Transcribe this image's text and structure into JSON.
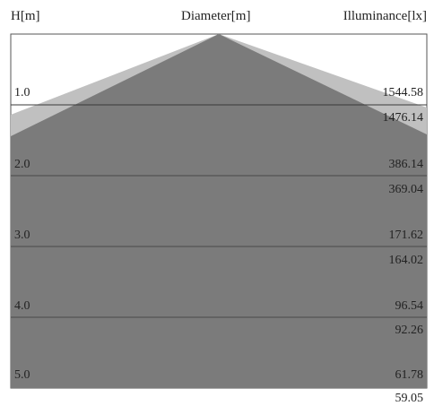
{
  "header": {
    "height_label": "H[m]",
    "diameter_label": "Diameter[m]",
    "illuminance_label": "Illuminance[lx]"
  },
  "rows": [
    {
      "h": "1.0",
      "lux_a": "1544.58",
      "lux_b": "1476.14"
    },
    {
      "h": "2.0",
      "lux_a": "386.14",
      "lux_b": "369.04"
    },
    {
      "h": "3.0",
      "lux_a": "171.62",
      "lux_b": "164.02"
    },
    {
      "h": "4.0",
      "lux_a": "96.54",
      "lux_b": "92.26"
    },
    {
      "h": "5.0",
      "lux_a": "61.78",
      "lux_b": "59.05"
    }
  ],
  "colors": {
    "cone_light": "#c0c0c0",
    "cone_dark": "#7b7b7b",
    "frame": "#555555"
  }
}
